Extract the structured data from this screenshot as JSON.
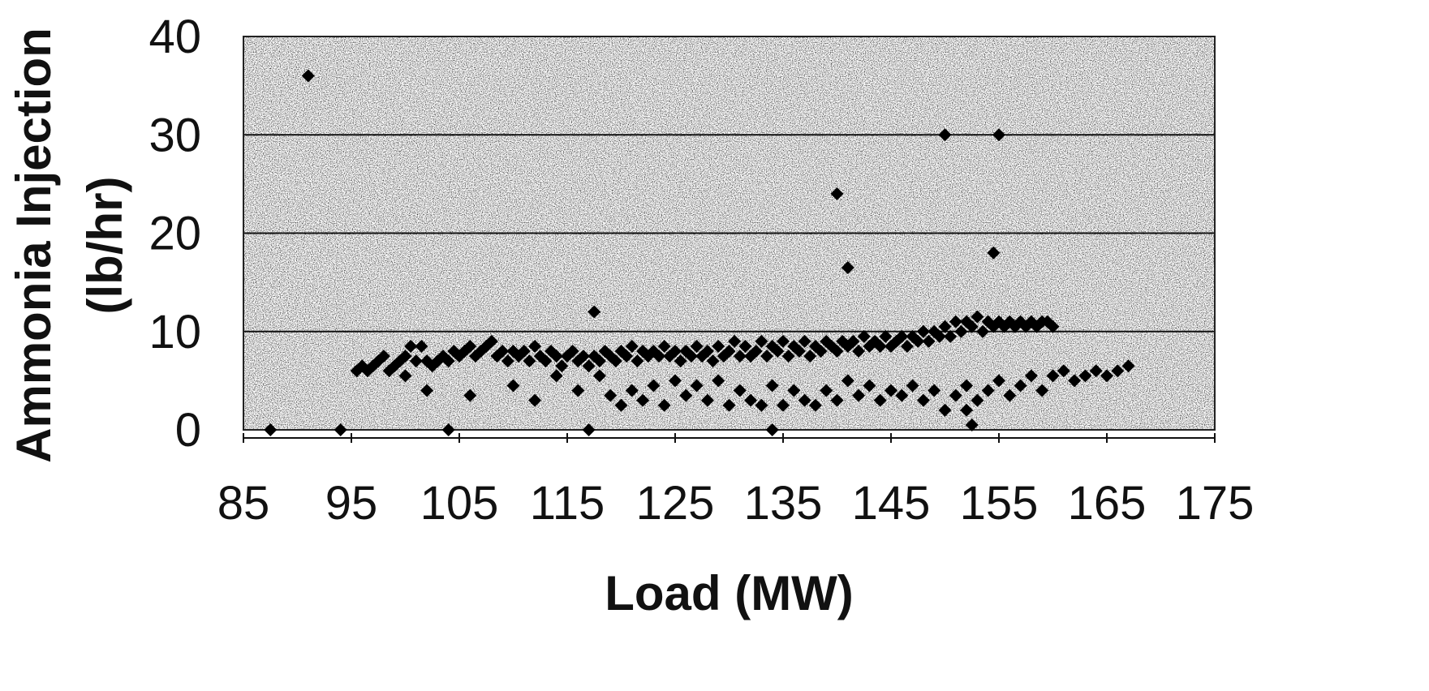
{
  "chart_data": {
    "type": "scatter",
    "title": "",
    "xlabel": "Load (MW)",
    "ylabel_lines": [
      "Ammonia Injection",
      "(lb/hr)"
    ],
    "xlim": [
      85,
      175
    ],
    "ylim": [
      0,
      40
    ],
    "x_ticks": [
      "85",
      "95",
      "105",
      "115",
      "125",
      "135",
      "145",
      "155",
      "165",
      "175"
    ],
    "y_ticks": [
      "0",
      "10",
      "20",
      "30",
      "40"
    ],
    "grid": "horizontal",
    "legend": "none",
    "marker": "diamond",
    "colors": {
      "marker": "#000000",
      "plot_background": "#9a9a9a",
      "gridline": "#111111"
    },
    "series": [
      {
        "values": [
          [
            87.5,
            0
          ],
          [
            91,
            36
          ],
          [
            94,
            0
          ],
          [
            104,
            0
          ],
          [
            117,
            0
          ],
          [
            117.5,
            12
          ],
          [
            134,
            0
          ],
          [
            140,
            24
          ],
          [
            141,
            16.5
          ],
          [
            150,
            30
          ],
          [
            155,
            30
          ],
          [
            154.5,
            18
          ],
          [
            152,
            2
          ],
          [
            152.5,
            0.5
          ],
          [
            148,
            10
          ],
          [
            95.5,
            6
          ],
          [
            96,
            6.5
          ],
          [
            96.5,
            6
          ],
          [
            97,
            6.5
          ],
          [
            97.5,
            7
          ],
          [
            98,
            7.5
          ],
          [
            98.5,
            6
          ],
          [
            99,
            6.5
          ],
          [
            99.5,
            7
          ],
          [
            100,
            7.5
          ],
          [
            100.5,
            8.5
          ],
          [
            101,
            7
          ],
          [
            101.5,
            8.5
          ],
          [
            102,
            7
          ],
          [
            102.5,
            6.5
          ],
          [
            103,
            7
          ],
          [
            103.5,
            7.5
          ],
          [
            104,
            7
          ],
          [
            104.5,
            8
          ],
          [
            105,
            7.5
          ],
          [
            105.5,
            8
          ],
          [
            106,
            8.5
          ],
          [
            106.5,
            7.5
          ],
          [
            107,
            8
          ],
          [
            107.5,
            8.5
          ],
          [
            108,
            9
          ],
          [
            108.5,
            7.5
          ],
          [
            109,
            8
          ],
          [
            109.5,
            7
          ],
          [
            110,
            8
          ],
          [
            110.5,
            7.5
          ],
          [
            111,
            8
          ],
          [
            111.5,
            7
          ],
          [
            112,
            8.5
          ],
          [
            112.5,
            7.5
          ],
          [
            113,
            7
          ],
          [
            113.5,
            8
          ],
          [
            114,
            7.5
          ],
          [
            114.5,
            6.5
          ],
          [
            115,
            7.5
          ],
          [
            115.5,
            8
          ],
          [
            116,
            7
          ],
          [
            116.5,
            7.5
          ],
          [
            117,
            6.5
          ],
          [
            117.5,
            7.5
          ],
          [
            118,
            7
          ],
          [
            118.5,
            8
          ],
          [
            119,
            7.5
          ],
          [
            119.5,
            7
          ],
          [
            120,
            8
          ],
          [
            120.5,
            7.5
          ],
          [
            121,
            8.5
          ],
          [
            121.5,
            7
          ],
          [
            122,
            8
          ],
          [
            122.5,
            7.5
          ],
          [
            123,
            8
          ],
          [
            123.5,
            7.5
          ],
          [
            124,
            8.5
          ],
          [
            124.5,
            7.5
          ],
          [
            125,
            8
          ],
          [
            125.5,
            7
          ],
          [
            126,
            8
          ],
          [
            126.5,
            7.5
          ],
          [
            127,
            8.5
          ],
          [
            127.5,
            7.5
          ],
          [
            128,
            8
          ],
          [
            128.5,
            7
          ],
          [
            129,
            8.5
          ],
          [
            129.5,
            7.5
          ],
          [
            130,
            8
          ],
          [
            130.5,
            9
          ],
          [
            131,
            7.5
          ],
          [
            131.5,
            8.5
          ],
          [
            132,
            7.5
          ],
          [
            132.5,
            8
          ],
          [
            133,
            9
          ],
          [
            133.5,
            7.5
          ],
          [
            134,
            8.5
          ],
          [
            134.5,
            8
          ],
          [
            135,
            9
          ],
          [
            135.5,
            7.5
          ],
          [
            136,
            8.5
          ],
          [
            136.5,
            8
          ],
          [
            137,
            9
          ],
          [
            137.5,
            7.5
          ],
          [
            138,
            8.5
          ],
          [
            138.5,
            8
          ],
          [
            139,
            9
          ],
          [
            139.5,
            8.5
          ],
          [
            140,
            8
          ],
          [
            140.5,
            9
          ],
          [
            141,
            8.5
          ],
          [
            141.5,
            9
          ],
          [
            142,
            8
          ],
          [
            142.5,
            9.5
          ],
          [
            143,
            8.5
          ],
          [
            143.5,
            9
          ],
          [
            144,
            8.5
          ],
          [
            144.5,
            9.5
          ],
          [
            145,
            8.5
          ],
          [
            145.5,
            9
          ],
          [
            146,
            9.5
          ],
          [
            146.5,
            8.5
          ],
          [
            147,
            9.5
          ],
          [
            147.5,
            9
          ],
          [
            148,
            10
          ],
          [
            148.5,
            9
          ],
          [
            149,
            10
          ],
          [
            149.5,
            9.5
          ],
          [
            150,
            10.5
          ],
          [
            150.5,
            9.5
          ],
          [
            151,
            11
          ],
          [
            151.5,
            10
          ],
          [
            152,
            11
          ],
          [
            152.5,
            10.5
          ],
          [
            153,
            11.5
          ],
          [
            153.5,
            10
          ],
          [
            154,
            11
          ],
          [
            154.5,
            10.5
          ],
          [
            155,
            11
          ],
          [
            155.5,
            10.5
          ],
          [
            156,
            11
          ],
          [
            156.5,
            10.5
          ],
          [
            157,
            11
          ],
          [
            157.5,
            10.5
          ],
          [
            158,
            11
          ],
          [
            158.5,
            10.5
          ],
          [
            159,
            11
          ],
          [
            159.5,
            11
          ],
          [
            160,
            10.5
          ],
          [
            100,
            5.5
          ],
          [
            102,
            4
          ],
          [
            106,
            3.5
          ],
          [
            110,
            4.5
          ],
          [
            112,
            3
          ],
          [
            114,
            5.5
          ],
          [
            116,
            4
          ],
          [
            118,
            5.5
          ],
          [
            119,
            3.5
          ],
          [
            120,
            2.5
          ],
          [
            121,
            4
          ],
          [
            122,
            3
          ],
          [
            123,
            4.5
          ],
          [
            124,
            2.5
          ],
          [
            125,
            5
          ],
          [
            126,
            3.5
          ],
          [
            127,
            4.5
          ],
          [
            128,
            3
          ],
          [
            129,
            5
          ],
          [
            130,
            2.5
          ],
          [
            131,
            4
          ],
          [
            132,
            3
          ],
          [
            133,
            2.5
          ],
          [
            134,
            4.5
          ],
          [
            135,
            2.5
          ],
          [
            136,
            4
          ],
          [
            137,
            3
          ],
          [
            138,
            2.5
          ],
          [
            139,
            4
          ],
          [
            140,
            3
          ],
          [
            141,
            5
          ],
          [
            142,
            3.5
          ],
          [
            143,
            4.5
          ],
          [
            144,
            3
          ],
          [
            145,
            4
          ],
          [
            146,
            3.5
          ],
          [
            147,
            4.5
          ],
          [
            148,
            3
          ],
          [
            149,
            4
          ],
          [
            150,
            2
          ],
          [
            151,
            3.5
          ],
          [
            152,
            4.5
          ],
          [
            153,
            3
          ],
          [
            154,
            4
          ],
          [
            155,
            5
          ],
          [
            156,
            3.5
          ],
          [
            157,
            4.5
          ],
          [
            158,
            5.5
          ],
          [
            159,
            4
          ],
          [
            160,
            5.5
          ],
          [
            161,
            6
          ],
          [
            162,
            5
          ],
          [
            163,
            5.5
          ],
          [
            164,
            6
          ],
          [
            165,
            5.5
          ],
          [
            166,
            6
          ],
          [
            167,
            6.5
          ]
        ]
      }
    ]
  }
}
